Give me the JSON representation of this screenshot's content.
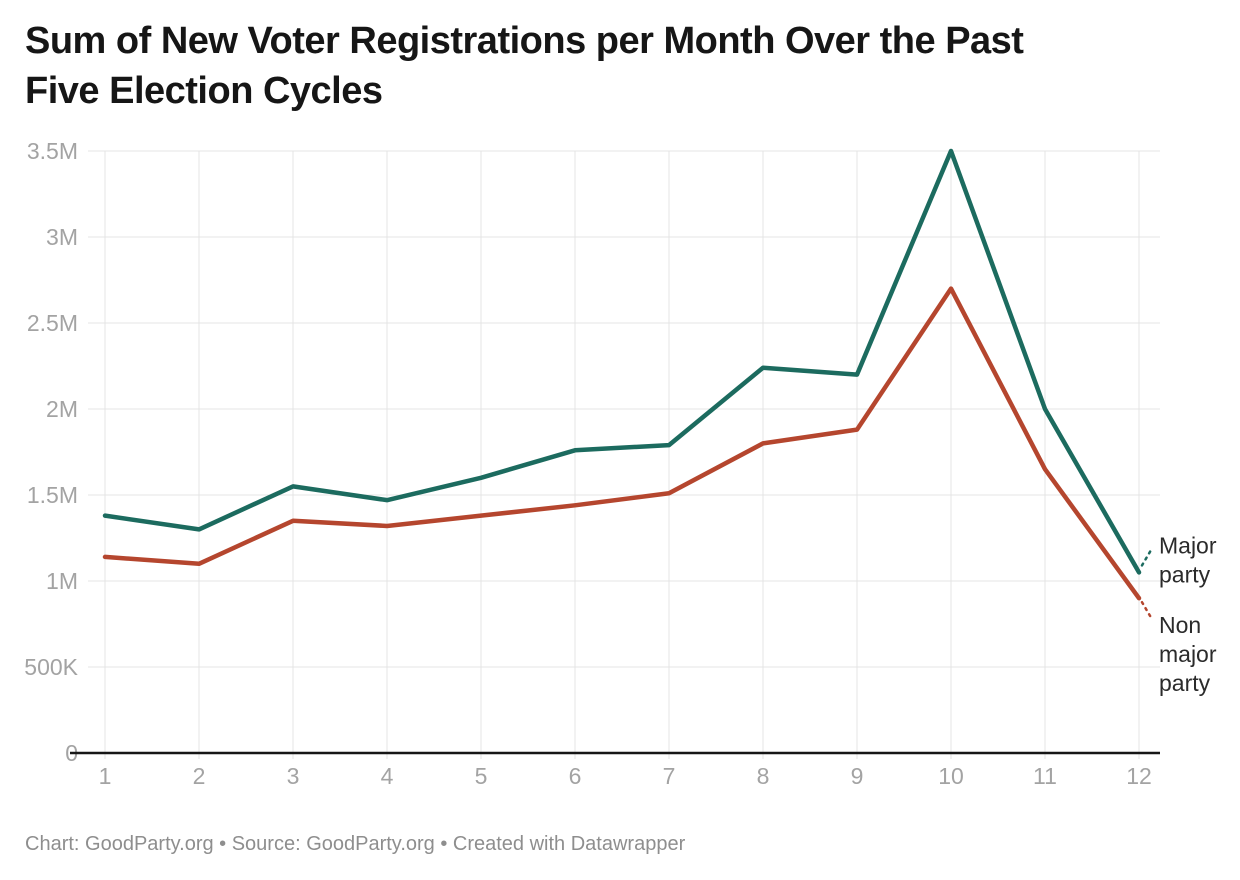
{
  "header": {
    "title": "Sum of New Voter Registrations per Month Over the Past\nFive Election Cycles"
  },
  "footer": {
    "text": "Chart: GoodParty.org • Source: GoodParty.org • Created with Datawrapper"
  },
  "chart_data": {
    "type": "line",
    "title": "Sum of New Voter Registrations per Month Over the Past Five Election Cycles",
    "xlabel": "",
    "ylabel": "",
    "x": [
      "1",
      "2",
      "3",
      "4",
      "5",
      "6",
      "7",
      "8",
      "9",
      "10",
      "11",
      "12"
    ],
    "ylim": [
      0,
      3500000
    ],
    "grid": true,
    "legend_position": "direct-labels-right",
    "yticks": [
      {
        "value": 0,
        "label": "0"
      },
      {
        "value": 500000,
        "label": "500K"
      },
      {
        "value": 1000000,
        "label": "1M"
      },
      {
        "value": 1500000,
        "label": "1.5M"
      },
      {
        "value": 2000000,
        "label": "2M"
      },
      {
        "value": 2500000,
        "label": "2.5M"
      },
      {
        "value": 3000000,
        "label": "3M"
      },
      {
        "value": 3500000,
        "label": "3.5M"
      }
    ],
    "series": [
      {
        "name": "Major party",
        "id": "major-party",
        "color": "#1c6b5f",
        "label_lines": [
          "Major",
          "party"
        ],
        "values": [
          1380000,
          1300000,
          1550000,
          1470000,
          1600000,
          1760000,
          1790000,
          2240000,
          2200000,
          3500000,
          2000000,
          1050000
        ]
      },
      {
        "name": "Non major party",
        "id": "non-major-party",
        "color": "#b5462e",
        "label_lines": [
          "Non",
          "major",
          "party"
        ],
        "values": [
          1140000,
          1100000,
          1350000,
          1320000,
          1380000,
          1440000,
          1510000,
          1800000,
          1880000,
          2700000,
          1650000,
          900000
        ]
      }
    ],
    "colors": {
      "gridline": "#e4e4e4",
      "axis_line": "#161616",
      "tick_label": "#a3a3a3",
      "direct_label": "#2b2b2b"
    }
  }
}
